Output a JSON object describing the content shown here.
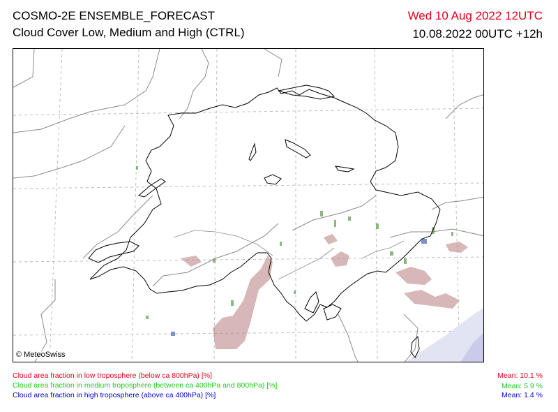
{
  "header": {
    "title": "COSMO-2E ENSEMBLE_FORECAST",
    "subtitle": "Cloud Cover Low, Medium and High (CTRL)",
    "valid_date": "Wed 10 Aug 2022 12UTC",
    "run_info": "10.08.2022 00UTC +12h"
  },
  "map": {
    "copyright": "© MeteoSwiss"
  },
  "legend": {
    "low": {
      "label": "Cloud area fraction in low troposphere (below ca 800hPa) [%]",
      "mean": "Mean:  10.1 %",
      "color": "#e4001b"
    },
    "medium": {
      "label": "Cloud area fraction in medium troposphere (between ca 400hPa and 800hPa) [%]",
      "mean": "Mean:   5.9 %",
      "color": "#1ec81e"
    },
    "high": {
      "label": "Cloud area fraction in high troposphere (above ca 400hPa) [%]",
      "mean": "Mean:   1.4 %",
      "color": "#0000d4"
    }
  },
  "colors": {
    "low_cloud_fill": "#b77b7e",
    "medium_cloud_fill": "#5a9a4a",
    "high_cloud_fill": "#7b93c8",
    "border": "#000000",
    "grid": "#bdbdbd",
    "country_border": "#8a8a8a"
  }
}
